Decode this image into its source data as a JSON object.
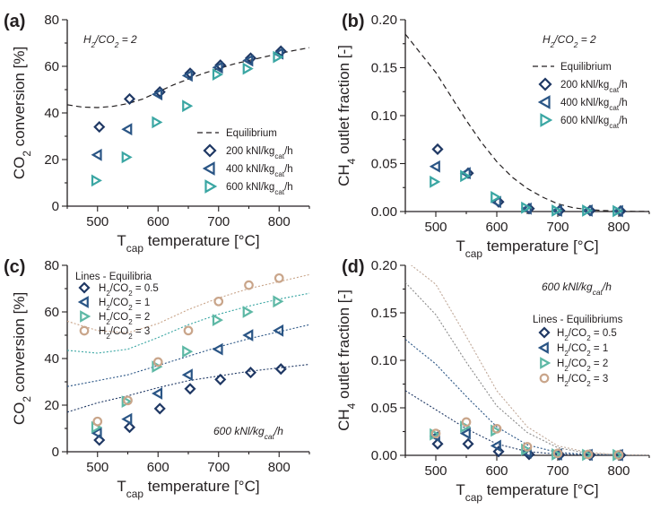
{
  "chart_data": [
    {
      "panel": "(a)",
      "type": "scatter",
      "annotation": {
        "main": "H",
        "sub1": "2",
        "mid": "/CO",
        "sub2": "2",
        "tail": " = 2"
      },
      "ylabel": {
        "pre": "CO",
        "sub": "2",
        "post": " conversion [%]"
      },
      "xlabel": {
        "pre": "T",
        "sub": "cap",
        "post": " temperature [°C]"
      },
      "xlim": [
        450,
        850
      ],
      "ylim": [
        0,
        80
      ],
      "xticks": [
        "500",
        "600",
        "700",
        "800"
      ],
      "yticks": [
        "0",
        "20",
        "40",
        "60",
        "80"
      ],
      "legend": [
        {
          "name": "Equilibrium",
          "marker": "line"
        },
        {
          "name": "200 kNl/kg",
          "sub": "cat",
          "tail": "/h",
          "marker": "diamond"
        },
        {
          "name": "400 kNl/kg",
          "sub": "cat",
          "tail": "/h",
          "marker": "tri-left"
        },
        {
          "name": "600 kNl/kg",
          "sub": "cat",
          "tail": "/h",
          "marker": "tri-right"
        }
      ],
      "lines": [
        {
          "name": "Equilibrium",
          "color": "#231f20",
          "dash": "6,4",
          "x": [
            450,
            475,
            500,
            525,
            550,
            575,
            600,
            625,
            650,
            675,
            700,
            725,
            750,
            775,
            800,
            825,
            850
          ],
          "y": [
            43.5,
            42.5,
            42.3,
            42.8,
            44.0,
            46.0,
            49.0,
            52.0,
            54.5,
            57.0,
            59.0,
            61.0,
            62.5,
            64.0,
            65.5,
            66.8,
            68.0
          ]
        }
      ],
      "series": [
        {
          "name": "200 kNl/kg_cat/h",
          "marker": "diamond",
          "color": "#1f3864",
          "x": [
            500,
            550,
            600,
            650,
            700,
            750,
            800
          ],
          "y": [
            34,
            46,
            49,
            57,
            60.5,
            63.5,
            66.5
          ]
        },
        {
          "name": "400 kNl/kg_cat/h",
          "marker": "tri-left",
          "color": "#2a5585",
          "x": [
            500,
            550,
            600,
            650,
            700,
            750,
            800
          ],
          "y": [
            22,
            33,
            48,
            56,
            59.5,
            62.5,
            65.5
          ]
        },
        {
          "name": "600 kNl/kg_cat/h",
          "marker": "tri-right",
          "color": "#3aa6a3",
          "x": [
            500,
            550,
            600,
            650,
            700,
            750,
            800
          ],
          "y": [
            11,
            21,
            36,
            43,
            56.5,
            59,
            64
          ]
        }
      ]
    },
    {
      "panel": "(b)",
      "type": "scatter",
      "annotation": {
        "main": "H",
        "sub1": "2",
        "mid": "/CO",
        "sub2": "2",
        "tail": " = 2"
      },
      "ylabel": {
        "pre": "CH",
        "sub": "4",
        "post": " outlet fraction [-]"
      },
      "xlabel": {
        "pre": "T",
        "sub": "cap",
        "post": " temperature [°C]"
      },
      "xlim": [
        450,
        850
      ],
      "ylim": [
        0,
        0.2
      ],
      "xticks": [
        "500",
        "600",
        "700",
        "800"
      ],
      "yticks": [
        "0.00",
        "0.05",
        "0.10",
        "0.15",
        "0.20"
      ],
      "legend": [
        {
          "name": "Equilibrium",
          "marker": "line"
        },
        {
          "name": "200 kNl/kg",
          "sub": "cat",
          "tail": "/h",
          "marker": "diamond"
        },
        {
          "name": "400 kNl/kg",
          "sub": "cat",
          "tail": "/h",
          "marker": "tri-left"
        },
        {
          "name": "600 kNl/kg",
          "sub": "cat",
          "tail": "/h",
          "marker": "tri-right"
        }
      ],
      "lines": [
        {
          "name": "Equilibrium",
          "color": "#231f20",
          "dash": "6,4",
          "x": [
            450,
            475,
            500,
            525,
            550,
            575,
            600,
            625,
            650,
            675,
            700,
            725,
            750,
            775,
            800,
            825,
            850
          ],
          "y": [
            0.185,
            0.165,
            0.145,
            0.12,
            0.095,
            0.072,
            0.052,
            0.036,
            0.024,
            0.015,
            0.008,
            0.004,
            0.002,
            0.001,
            0.0005,
            0.0002,
            0.0001
          ]
        }
      ],
      "series": [
        {
          "name": "200 kNl/kg_cat/h",
          "marker": "diamond",
          "color": "#1f3864",
          "x": [
            500,
            550,
            600,
            650,
            700,
            750,
            800
          ],
          "y": [
            0.065,
            0.04,
            0.01,
            0.003,
            0.001,
            0.001,
            0.0005
          ]
        },
        {
          "name": "400 kNl/kg_cat/h",
          "marker": "tri-left",
          "color": "#2a5585",
          "x": [
            500,
            550,
            600,
            650,
            700,
            750,
            800
          ],
          "y": [
            0.047,
            0.04,
            0.01,
            0.003,
            0.001,
            0.001,
            0.0005
          ]
        },
        {
          "name": "600 kNl/kg_cat/h",
          "marker": "tri-right",
          "color": "#3aa6a3",
          "x": [
            500,
            550,
            600,
            650,
            700,
            750,
            800
          ],
          "y": [
            0.031,
            0.037,
            0.015,
            0.004,
            0.001,
            0.001,
            0.0005
          ]
        }
      ]
    },
    {
      "panel": "(c)",
      "type": "scatter",
      "annotation": {
        "main": "600 kNl/kg",
        "sub1": "cat",
        "mid": "/h",
        "sub2": "",
        "tail": ""
      },
      "ylabel": {
        "pre": "CO",
        "sub": "2",
        "post": " conversion [%]"
      },
      "xlabel": {
        "pre": "T",
        "sub": "cap",
        "post": " temperature [°C]"
      },
      "xlim": [
        450,
        850
      ],
      "ylim": [
        0,
        80
      ],
      "xticks": [
        "500",
        "600",
        "700",
        "800"
      ],
      "yticks": [
        "0",
        "20",
        "40",
        "60",
        "80"
      ],
      "legend_title": "Lines - Equilibria",
      "legend": [
        {
          "name": "H",
          "sub": "2",
          "tail": "/CO",
          "sub2": "2",
          "tail2": " = 0.5",
          "marker": "diamond"
        },
        {
          "name": "H",
          "sub": "2",
          "tail": "/CO",
          "sub2": "2",
          "tail2": " = 1",
          "marker": "tri-left"
        },
        {
          "name": "H",
          "sub": "2",
          "tail": "/CO",
          "sub2": "2",
          "tail2": " = 2",
          "marker": "tri-right"
        },
        {
          "name": "H",
          "sub": "2",
          "tail": "/CO",
          "sub2": "2",
          "tail2": " = 3",
          "marker": "circle"
        }
      ],
      "lines": [
        {
          "name": "H2/CO2 = 0.5",
          "color": "#1f3864",
          "dash": "2,2",
          "x": [
            450,
            500,
            550,
            600,
            650,
            700,
            750,
            800,
            850
          ],
          "y": [
            17,
            21,
            24,
            27.5,
            30.5,
            32.5,
            34.5,
            36,
            37.5
          ]
        },
        {
          "name": "H2/CO2 = 1",
          "color": "#2a5585",
          "dash": "2,2",
          "x": [
            450,
            500,
            550,
            600,
            650,
            700,
            750,
            800,
            850
          ],
          "y": [
            28,
            30.5,
            33,
            37,
            41,
            45,
            48.5,
            51.5,
            54.5
          ]
        },
        {
          "name": "H2/CO2 = 2",
          "color": "#3aa6a3",
          "dash": "2,2",
          "x": [
            450,
            500,
            550,
            600,
            650,
            700,
            750,
            800,
            850
          ],
          "y": [
            43.5,
            42.3,
            44,
            49,
            54.5,
            59,
            62.5,
            65.5,
            68
          ]
        },
        {
          "name": "H2/CO2 = 3",
          "color": "#c9a58a",
          "dash": "2,2",
          "x": [
            450,
            500,
            550,
            600,
            650,
            700,
            750,
            800,
            850
          ],
          "y": [
            56,
            52,
            51,
            55,
            61,
            66,
            70,
            73,
            76
          ]
        }
      ],
      "series": [
        {
          "name": "H2/CO2 = 0.5",
          "marker": "diamond",
          "color": "#1f3864",
          "x": [
            500,
            550,
            600,
            650,
            700,
            750,
            800
          ],
          "y": [
            5,
            10.5,
            18.5,
            27,
            31,
            34,
            35.5
          ]
        },
        {
          "name": "H2/CO2 = 1",
          "marker": "tri-left",
          "color": "#2a5585",
          "x": [
            500,
            550,
            600,
            650,
            700,
            750,
            800
          ],
          "y": [
            8,
            14,
            25,
            33,
            44,
            50,
            52
          ]
        },
        {
          "name": "H2/CO2 = 2",
          "marker": "tri-right",
          "color": "#5db8a5",
          "x": [
            500,
            550,
            600,
            650,
            700,
            750,
            800
          ],
          "y": [
            10.5,
            21.5,
            36.5,
            43,
            56.5,
            60,
            64.5
          ]
        },
        {
          "name": "H2/CO2 = 3",
          "marker": "circle",
          "color": "#c9a58a",
          "x": [
            500,
            550,
            600,
            650,
            700,
            750,
            800
          ],
          "y": [
            13,
            22,
            38.5,
            52,
            64.5,
            71.5,
            74.5
          ]
        }
      ]
    },
    {
      "panel": "(d)",
      "type": "scatter",
      "annotation": {
        "main": "600 kNl/kg",
        "sub1": "cat",
        "mid": "/h",
        "sub2": "",
        "tail": ""
      },
      "ylabel": {
        "pre": "CH",
        "sub": "4",
        "post": " outlet fraction [-]"
      },
      "xlabel": {
        "pre": "T",
        "sub": "cap",
        "post": " temperature [°C]"
      },
      "xlim": [
        450,
        850
      ],
      "ylim": [
        0,
        0.2
      ],
      "xticks": [
        "500",
        "600",
        "700",
        "800"
      ],
      "yticks": [
        "0.00",
        "0.05",
        "0.10",
        "0.15",
        "0.20"
      ],
      "legend_title": "Lines - Equilibriums",
      "legend": [
        {
          "name": "H",
          "sub": "2",
          "tail": "/CO",
          "sub2": "2",
          "tail2": " = 0.5",
          "marker": "diamond"
        },
        {
          "name": "H",
          "sub": "2",
          "tail": "/CO",
          "sub2": "2",
          "tail2": " = 1",
          "marker": "tri-left"
        },
        {
          "name": "H",
          "sub": "2",
          "tail": "/CO",
          "sub2": "2",
          "tail2": " = 2",
          "marker": "tri-right"
        },
        {
          "name": "H",
          "sub": "2",
          "tail": "/CO",
          "sub2": "2",
          "tail2": " = 3",
          "marker": "circle"
        }
      ],
      "lines": [
        {
          "name": "H2/CO2 = 0.5",
          "color": "#1f3864",
          "dash": "2,2",
          "x": [
            450,
            500,
            550,
            600,
            650,
            700,
            750,
            800,
            850
          ],
          "y": [
            0.068,
            0.048,
            0.028,
            0.012,
            0.004,
            0.0012,
            0.0004,
            0.0001,
            0
          ]
        },
        {
          "name": "H2/CO2 = 1",
          "color": "#2a5585",
          "dash": "2,2",
          "x": [
            450,
            500,
            550,
            600,
            650,
            700,
            750,
            800,
            850
          ],
          "y": [
            0.122,
            0.096,
            0.062,
            0.03,
            0.011,
            0.003,
            0.001,
            0.0003,
            0
          ]
        },
        {
          "name": "H2/CO2 = 2",
          "color": "#8a8a8a",
          "dash": "2,2",
          "x": [
            450,
            500,
            550,
            600,
            650,
            700,
            750,
            800,
            850
          ],
          "y": [
            0.182,
            0.148,
            0.098,
            0.052,
            0.024,
            0.008,
            0.002,
            0.0005,
            0
          ]
        },
        {
          "name": "H2/CO2 = 3",
          "color": "#c0a898",
          "dash": "2,2",
          "x": [
            450,
            500,
            550,
            600,
            650,
            700,
            750,
            800,
            850
          ],
          "y": [
            0.205,
            0.18,
            0.125,
            0.068,
            0.03,
            0.01,
            0.003,
            0.0008,
            0
          ]
        }
      ],
      "series": [
        {
          "name": "H2/CO2 = 0.5",
          "marker": "diamond",
          "color": "#1f3864",
          "x": [
            500,
            550,
            600,
            650,
            700,
            750,
            800
          ],
          "y": [
            0.012,
            0.012,
            0.004,
            0.001,
            0.0005,
            0.0003,
            0.0002
          ]
        },
        {
          "name": "H2/CO2 = 1",
          "marker": "tri-left",
          "color": "#2a5585",
          "x": [
            500,
            550,
            600,
            650,
            700,
            750,
            800
          ],
          "y": [
            0.02,
            0.023,
            0.01,
            0.003,
            0.001,
            0.0005,
            0.0003
          ]
        },
        {
          "name": "H2/CO2 = 2",
          "marker": "tri-right",
          "color": "#5db8a5",
          "x": [
            500,
            550,
            600,
            650,
            700,
            750,
            800
          ],
          "y": [
            0.022,
            0.03,
            0.026,
            0.006,
            0.001,
            0.0005,
            0.0003
          ]
        },
        {
          "name": "H2/CO2 = 3",
          "marker": "circle",
          "color": "#c9a58a",
          "x": [
            500,
            550,
            600,
            650,
            700,
            750,
            800
          ],
          "y": [
            0.023,
            0.035,
            0.028,
            0.009,
            0.002,
            0.001,
            0.0005
          ]
        }
      ]
    }
  ]
}
